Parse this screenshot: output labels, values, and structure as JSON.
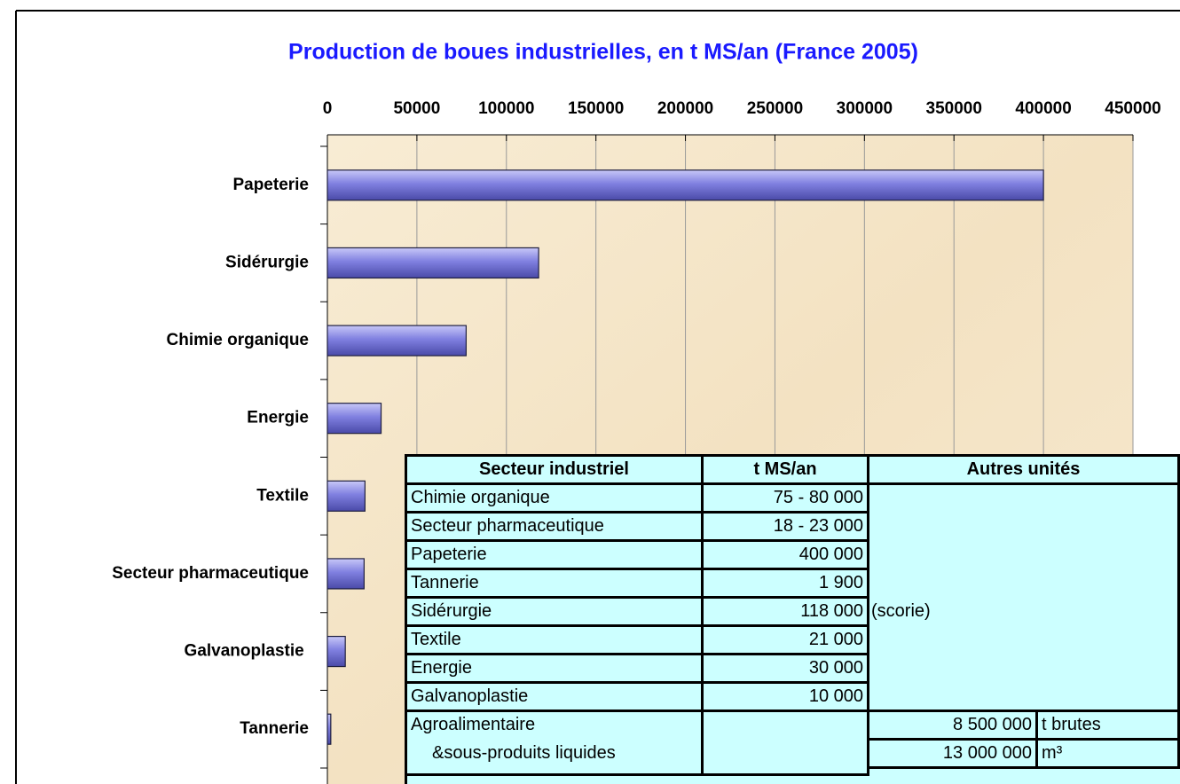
{
  "chart_data": {
    "type": "bar",
    "orientation": "horizontal",
    "title": "Production de boues industrielles, en t MS/an (France 2005)",
    "categories": [
      "Papeterie",
      "Sidérurgie",
      "Chimie organique",
      "Energie",
      "Textile",
      "Secteur pharmaceutique",
      "Galvanoplastie ",
      "Tannerie"
    ],
    "values": [
      400000,
      118000,
      77500,
      30000,
      21000,
      20500,
      10000,
      1900
    ],
    "color": "#8080e0",
    "xlim": [
      0,
      450000
    ],
    "xticks": [
      0,
      50000,
      100000,
      150000,
      200000,
      250000,
      300000,
      350000,
      400000,
      450000
    ],
    "grid": true
  },
  "table": {
    "headers": [
      "Secteur industriel",
      "t MS/an",
      "Autres unités"
    ],
    "rows": [
      [
        "Chimie organique",
        "75 - 80 000"
      ],
      [
        "Secteur pharmaceutique",
        "18 - 23 000"
      ],
      [
        "Papeterie",
        "400 000"
      ],
      [
        "Tannerie",
        "1 900"
      ],
      [
        "Sidérurgie",
        "118 000",
        "(scorie)"
      ],
      [
        "Textile",
        "21 000"
      ],
      [
        "Energie",
        "30 000"
      ],
      [
        "Galvanoplastie",
        "10 000"
      ]
    ],
    "agro": {
      "label": "Agroalimentaire",
      "label2": "&sous-produits liquides",
      "amounts": [
        "8 500 000",
        "13 000 000"
      ],
      "units": [
        "t brutes",
        "m³"
      ]
    }
  }
}
